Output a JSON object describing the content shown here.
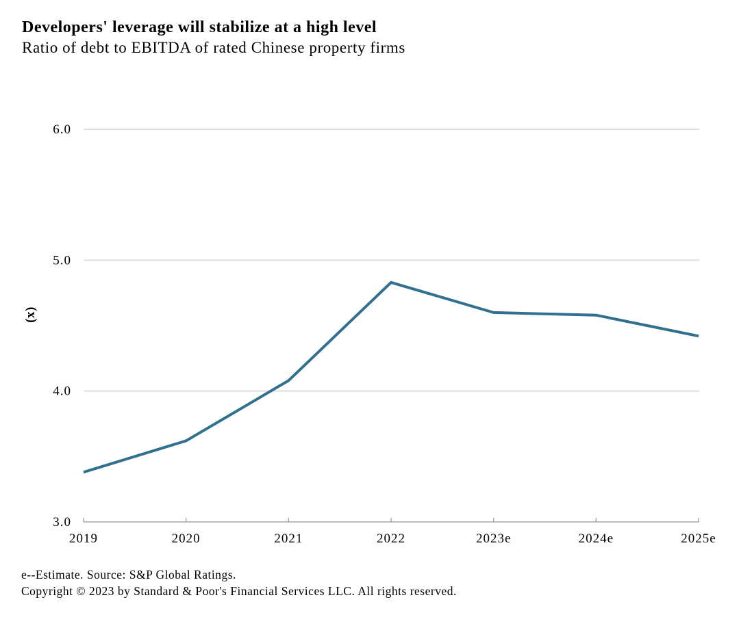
{
  "header": {
    "title": "Developers' leverage will stabilize at a high level",
    "subtitle": "Ratio of debt to EBITDA of rated Chinese property firms"
  },
  "chart_data": {
    "type": "line",
    "categories": [
      "2019",
      "2020",
      "2021",
      "2022",
      "2023e",
      "2024e",
      "2025e"
    ],
    "series": [
      {
        "name": "Ratio of debt to EBITDA",
        "values": [
          3.38,
          3.62,
          4.08,
          4.83,
          4.6,
          4.58,
          4.42
        ]
      }
    ],
    "title": "Developers' leverage will stabilize at a high level",
    "subtitle": "Ratio of debt to EBITDA of rated Chinese property firms",
    "xlabel": "",
    "ylabel": "(x)",
    "ylim": [
      3.0,
      6.0
    ],
    "yticks": [
      "3.0",
      "4.0",
      "5.0",
      "6.0"
    ],
    "grid": "horizontal",
    "legend_position": "none",
    "line_color": "#31708f",
    "grid_color": "#dfdfdf",
    "axis_color": "#a6a6a6",
    "text_color": "#000000"
  },
  "footer": {
    "note": "e--Estimate. Source: S&P Global Ratings.",
    "copyright": "Copyright © 2023 by Standard & Poor's Financial Services LLC. All rights reserved."
  }
}
